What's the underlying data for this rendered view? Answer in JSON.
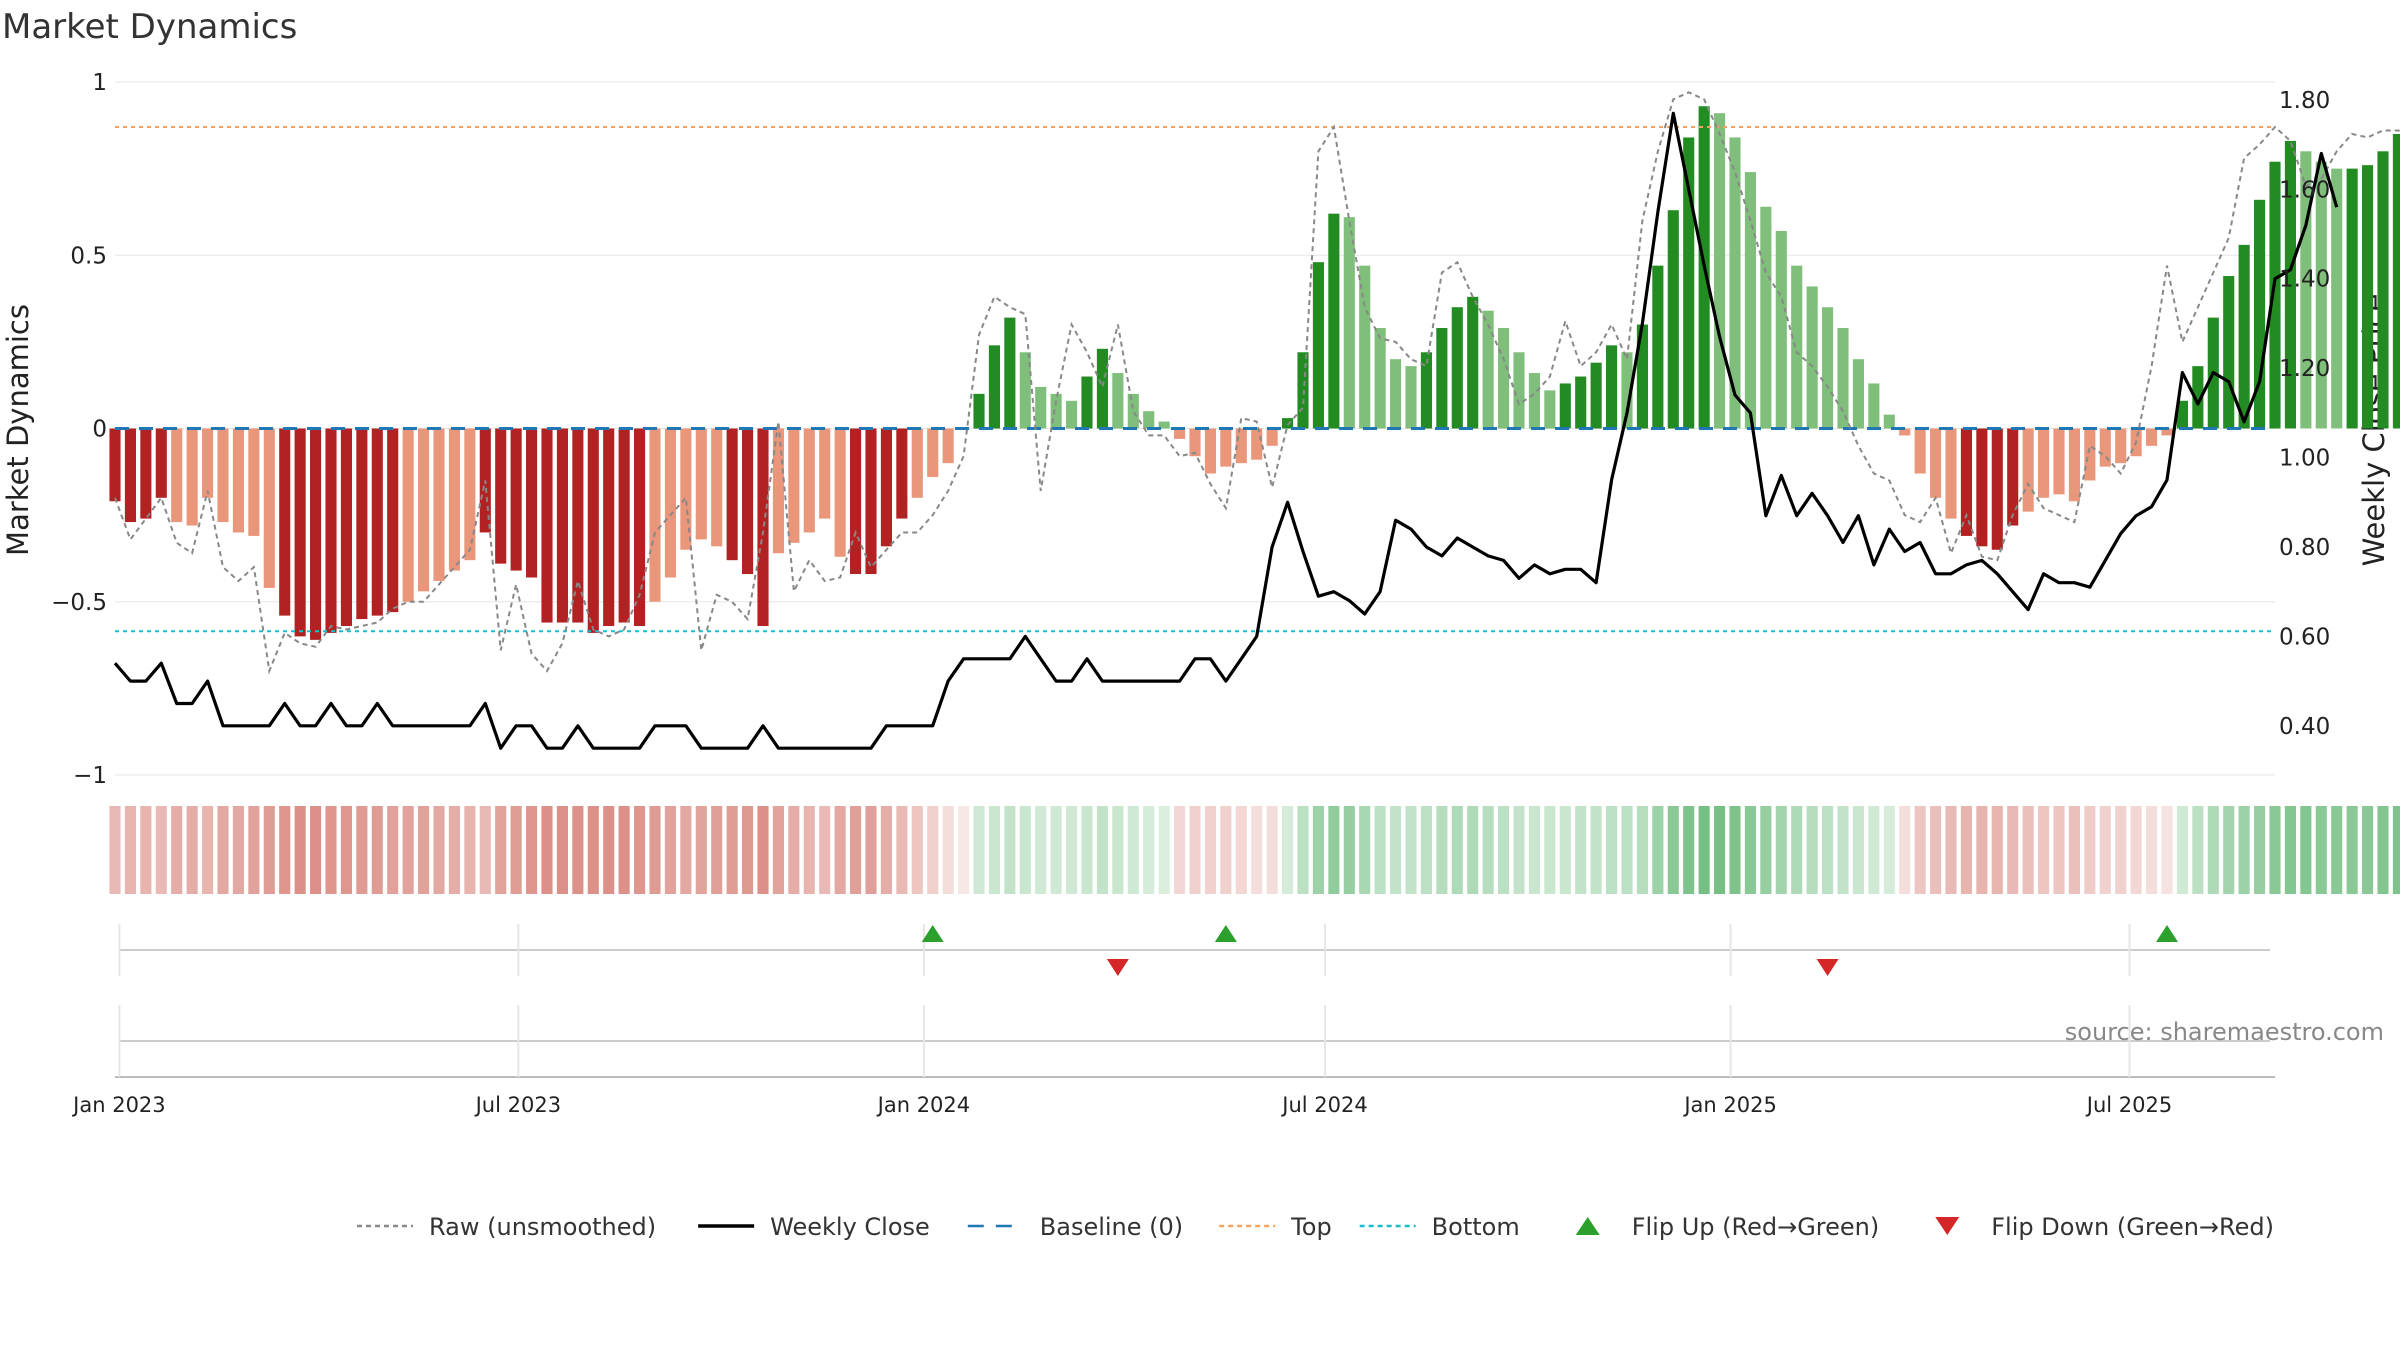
{
  "chart_data": {
    "type": "bar",
    "title": "Market Dynamics",
    "ylabel": "Market Dynamics",
    "y2label": "Weekly Close Price",
    "ylim": [
      -1,
      1
    ],
    "y2lim": [
      0.29,
      1.84
    ],
    "yticks": [
      "1",
      "0.5",
      "0",
      "−0.5",
      "−1"
    ],
    "yticks_values": [
      1,
      0.5,
      0,
      -0.5,
      -1
    ],
    "y2ticks": [
      "1.80",
      "1.60",
      "1.40",
      "1.20",
      "1.00",
      "0.80",
      "0.60",
      "0.40"
    ],
    "y2ticks_values": [
      1.8,
      1.6,
      1.4,
      1.2,
      1.0,
      0.8,
      0.6,
      0.4
    ],
    "x_start": "2022-12-30",
    "x_end": "2025-09-05",
    "xticks": [
      {
        "date": "2023-01-01",
        "label": "Jan 2023"
      },
      {
        "date": "2023-07-01",
        "label": "Jul 2023"
      },
      {
        "date": "2024-01-01",
        "label": "Jan 2024"
      },
      {
        "date": "2024-07-01",
        "label": "Jul 2024"
      },
      {
        "date": "2025-01-01",
        "label": "Jan 2025"
      },
      {
        "date": "2025-07-01",
        "label": "Jul 2025"
      }
    ],
    "weeks_start": "2022-12-30",
    "top_level": 0.87,
    "bottom_level": -0.585,
    "baseline": 0,
    "bars": [
      -0.21,
      -0.27,
      -0.26,
      -0.2,
      -0.27,
      -0.28,
      -0.2,
      -0.27,
      -0.3,
      -0.31,
      -0.46,
      -0.54,
      -0.6,
      -0.61,
      -0.59,
      -0.57,
      -0.55,
      -0.54,
      -0.53,
      -0.5,
      -0.47,
      -0.44,
      -0.41,
      -0.38,
      -0.3,
      -0.39,
      -0.41,
      -0.43,
      -0.56,
      -0.56,
      -0.56,
      -0.59,
      -0.57,
      -0.56,
      -0.57,
      -0.5,
      -0.43,
      -0.35,
      -0.32,
      -0.34,
      -0.38,
      -0.42,
      -0.57,
      -0.36,
      -0.33,
      -0.3,
      -0.26,
      -0.37,
      -0.42,
      -0.42,
      -0.34,
      -0.26,
      -0.2,
      -0.14,
      -0.1,
      0,
      0.1,
      0.24,
      0.32,
      0.22,
      0.12,
      0.1,
      0.08,
      0.15,
      0.23,
      0.16,
      0.1,
      0.05,
      0.02,
      -0.03,
      -0.08,
      -0.13,
      -0.11,
      -0.1,
      -0.09,
      -0.05,
      0.03,
      0.22,
      0.48,
      0.62,
      0.61,
      0.47,
      0.29,
      0.2,
      0.18,
      0.22,
      0.29,
      0.35,
      0.38,
      0.34,
      0.29,
      0.22,
      0.16,
      0.11,
      0.13,
      0.15,
      0.19,
      0.24,
      0.22,
      0.3,
      0.47,
      0.63,
      0.84,
      0.93,
      0.91,
      0.84,
      0.74,
      0.64,
      0.57,
      0.47,
      0.41,
      0.35,
      0.29,
      0.2,
      0.13,
      0.04,
      -0.02,
      -0.13,
      -0.2,
      -0.26,
      -0.31,
      -0.34,
      -0.35,
      -0.28,
      -0.24,
      -0.2,
      -0.19,
      -0.21,
      -0.15,
      -0.11,
      -0.1,
      -0.08,
      -0.05,
      -0.02,
      0.08,
      0.18,
      0.32,
      0.44,
      0.53,
      0.66,
      0.77,
      0.83,
      0.8,
      0.77,
      0.75,
      0.75,
      0.76,
      0.8,
      0.85,
      0.82
    ],
    "raw": [
      -0.2,
      -0.32,
      -0.26,
      -0.2,
      -0.33,
      -0.36,
      -0.18,
      -0.4,
      -0.44,
      -0.4,
      -0.7,
      -0.59,
      -0.62,
      -0.63,
      -0.57,
      -0.58,
      -0.57,
      -0.56,
      -0.52,
      -0.5,
      -0.5,
      -0.45,
      -0.4,
      -0.35,
      -0.15,
      -0.64,
      -0.45,
      -0.65,
      -0.7,
      -0.62,
      -0.44,
      -0.58,
      -0.6,
      -0.58,
      -0.48,
      -0.3,
      -0.25,
      -0.2,
      -0.64,
      -0.48,
      -0.5,
      -0.55,
      -0.3,
      0.02,
      -0.47,
      -0.38,
      -0.44,
      -0.43,
      -0.3,
      -0.4,
      -0.35,
      -0.3,
      -0.3,
      -0.25,
      -0.18,
      -0.08,
      0.27,
      0.38,
      0.35,
      0.33,
      -0.18,
      0.08,
      0.3,
      0.22,
      0.12,
      0.3,
      0.05,
      -0.02,
      -0.02,
      -0.08,
      -0.07,
      -0.16,
      -0.23,
      0.03,
      0.02,
      -0.17,
      0.01,
      0.06,
      0.8,
      0.87,
      0.6,
      0.35,
      0.26,
      0.25,
      0.2,
      0.18,
      0.45,
      0.48,
      0.38,
      0.3,
      0.2,
      0.07,
      0.1,
      0.15,
      0.31,
      0.18,
      0.22,
      0.3,
      0.2,
      0.6,
      0.8,
      0.95,
      0.97,
      0.95,
      0.85,
      0.74,
      0.6,
      0.45,
      0.38,
      0.22,
      0.18,
      0.12,
      0.05,
      -0.05,
      -0.13,
      -0.15,
      -0.25,
      -0.27,
      -0.2,
      -0.36,
      -0.25,
      -0.37,
      -0.38,
      -0.25,
      -0.16,
      -0.23,
      -0.25,
      -0.27,
      -0.05,
      -0.08,
      -0.13,
      -0.04,
      0.18,
      0.47,
      0.25,
      0.35,
      0.45,
      0.55,
      0.78,
      0.82,
      0.87,
      0.83,
      0.7,
      0.72,
      0.8,
      0.85,
      0.84,
      0.86,
      0.86,
      0.84
    ],
    "close": [
      0.54,
      0.5,
      0.5,
      0.54,
      0.45,
      0.45,
      0.5,
      0.4,
      0.4,
      0.4,
      0.4,
      0.45,
      0.4,
      0.4,
      0.45,
      0.4,
      0.4,
      0.45,
      0.4,
      0.4,
      0.4,
      0.4,
      0.4,
      0.4,
      0.45,
      0.35,
      0.4,
      0.4,
      0.35,
      0.35,
      0.4,
      0.35,
      0.35,
      0.35,
      0.35,
      0.4,
      0.4,
      0.4,
      0.35,
      0.35,
      0.35,
      0.35,
      0.4,
      0.35,
      0.35,
      0.35,
      0.35,
      0.35,
      0.35,
      0.35,
      0.4,
      0.4,
      0.4,
      0.4,
      0.5,
      0.55,
      0.55,
      0.55,
      0.55,
      0.6,
      0.55,
      0.5,
      0.5,
      0.55,
      0.5,
      0.5,
      0.5,
      0.5,
      0.5,
      0.5,
      0.55,
      0.55,
      0.5,
      0.55,
      0.6,
      0.8,
      0.9,
      0.79,
      0.69,
      0.7,
      0.68,
      0.65,
      0.7,
      0.86,
      0.84,
      0.8,
      0.78,
      0.82,
      0.8,
      0.78,
      0.77,
      0.73,
      0.76,
      0.74,
      0.75,
      0.75,
      0.72,
      0.95,
      1.1,
      1.3,
      1.55,
      1.77,
      1.6,
      1.43,
      1.27,
      1.14,
      1.1,
      0.87,
      0.96,
      0.87,
      0.92,
      0.87,
      0.81,
      0.87,
      0.76,
      0.84,
      0.79,
      0.81,
      0.74,
      0.74,
      0.76,
      0.77,
      0.74,
      0.7,
      0.66,
      0.74,
      0.72,
      0.72,
      0.71,
      0.77,
      0.83,
      0.87,
      0.89,
      0.95,
      1.19,
      1.12,
      1.19,
      1.17,
      1.08,
      1.17,
      1.4,
      1.42,
      1.52,
      1.68,
      1.56
    ],
    "strip": [
      -0.5,
      -0.55,
      -0.55,
      -0.5,
      -0.6,
      -0.6,
      -0.55,
      -0.65,
      -0.65,
      -0.7,
      -0.75,
      -0.8,
      -0.85,
      -0.85,
      -0.8,
      -0.8,
      -0.75,
      -0.75,
      -0.7,
      -0.7,
      -0.7,
      -0.65,
      -0.6,
      -0.55,
      -0.5,
      -0.7,
      -0.75,
      -0.8,
      -0.85,
      -0.85,
      -0.85,
      -0.85,
      -0.85,
      -0.85,
      -0.8,
      -0.75,
      -0.7,
      -0.65,
      -0.7,
      -0.72,
      -0.75,
      -0.78,
      -0.85,
      -0.7,
      -0.6,
      -0.55,
      -0.5,
      -0.65,
      -0.72,
      -0.72,
      -0.6,
      -0.5,
      -0.4,
      -0.3,
      -0.2,
      -0.05,
      0.3,
      0.35,
      0.4,
      0.35,
      0.3,
      0.3,
      0.3,
      0.35,
      0.4,
      0.35,
      0.3,
      0.25,
      0.2,
      -0.25,
      -0.3,
      -0.3,
      -0.3,
      -0.25,
      -0.2,
      -0.2,
      0.25,
      0.45,
      0.7,
      0.8,
      0.75,
      0.6,
      0.45,
      0.4,
      0.4,
      0.45,
      0.5,
      0.55,
      0.55,
      0.5,
      0.45,
      0.4,
      0.35,
      0.35,
      0.35,
      0.4,
      0.4,
      0.45,
      0.45,
      0.5,
      0.7,
      0.85,
      0.95,
      1,
      1,
      0.95,
      0.85,
      0.75,
      0.65,
      0.55,
      0.5,
      0.45,
      0.4,
      0.35,
      0.3,
      0.25,
      -0.2,
      -0.4,
      -0.45,
      -0.5,
      -0.55,
      -0.55,
      -0.55,
      -0.5,
      -0.45,
      -0.4,
      -0.4,
      -0.45,
      -0.35,
      -0.3,
      -0.3,
      -0.25,
      -0.2,
      -0.15,
      0.3,
      0.45,
      0.55,
      0.65,
      0.7,
      0.75,
      0.85,
      0.9,
      0.9,
      0.85,
      0.85,
      0.85,
      0.85,
      0.9,
      0.95,
      0.9
    ],
    "flip_up_weeks": [
      53,
      72,
      133
    ],
    "flip_down_weeks": [
      65,
      111
    ],
    "source": "source: sharemaestro.com",
    "legend": [
      {
        "label": "Raw (unsmoothed)",
        "kind": "line",
        "color": "#888888",
        "dash": "dotted"
      },
      {
        "label": "Weekly Close",
        "kind": "line",
        "color": "#000000",
        "dash": "solid"
      },
      {
        "label": "Baseline (0)",
        "kind": "line",
        "color": "#1f77b4",
        "dash": "dashed"
      },
      {
        "label": "Top",
        "kind": "line",
        "color": "#f4a460",
        "dash": "dotted"
      },
      {
        "label": "Bottom",
        "kind": "line",
        "color": "#17becf",
        "dash": "dotted"
      },
      {
        "label": "Flip Up (Red→Green)",
        "kind": "up",
        "color": "#2ca02c"
      },
      {
        "label": "Flip Down (Green→Red)",
        "kind": "down",
        "color": "#d62728"
      }
    ],
    "colors": {
      "strong_red": "#b22222",
      "weak_red": "#e9967a",
      "strong_green": "#228b22",
      "weak_green": "#7fbf7b",
      "strip_red": "#c0392b",
      "strip_green": "#2e9e44",
      "close": "#000000",
      "raw": "#888888",
      "baseline": "#1f77b4",
      "top": "#f4a460",
      "bottom": "#17becf",
      "up_marker": "#2ca02c",
      "down_marker": "#d62728"
    },
    "grid": true,
    "legend_position": "bottom"
  }
}
